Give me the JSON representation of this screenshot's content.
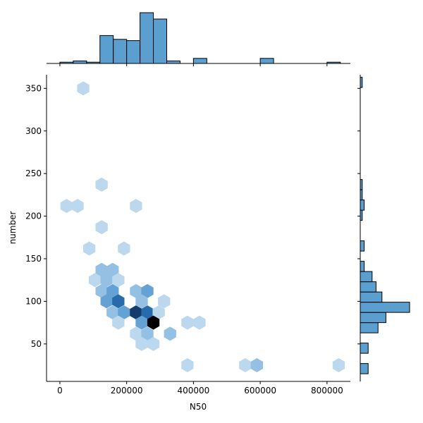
{
  "chart_data": {
    "type": "hexbin-joint",
    "xlabel": "N50",
    "ylabel": "number",
    "xlim": [
      -40000,
      870000
    ],
    "ylim": [
      6,
      366
    ],
    "x_ticks": [
      0,
      200000,
      400000,
      600000,
      800000
    ],
    "x_tick_labels": [
      "0",
      "200000",
      "400000",
      "600000",
      "800000"
    ],
    "y_ticks": [
      50,
      100,
      150,
      200,
      250,
      300,
      350
    ],
    "y_tick_labels": [
      "50",
      "100",
      "150",
      "200",
      "250",
      "300",
      "350"
    ],
    "grid": false,
    "color": "#2f7fc4",
    "bar_color": "#5b9fd1",
    "hexbins": [
      {
        "x": 70000,
        "y": 350,
        "count": 1
      },
      {
        "x": 125000,
        "y": 237,
        "count": 1
      },
      {
        "x": 20000,
        "y": 212,
        "count": 1
      },
      {
        "x": 53000,
        "y": 212,
        "count": 1
      },
      {
        "x": 228000,
        "y": 212,
        "count": 1
      },
      {
        "x": 125000,
        "y": 187,
        "count": 1
      },
      {
        "x": 88000,
        "y": 162,
        "count": 1
      },
      {
        "x": 192000,
        "y": 162,
        "count": 1
      },
      {
        "x": 125000,
        "y": 137,
        "count": 2
      },
      {
        "x": 158000,
        "y": 137,
        "count": 2
      },
      {
        "x": 105000,
        "y": 125,
        "count": 1
      },
      {
        "x": 140000,
        "y": 125,
        "count": 2
      },
      {
        "x": 175000,
        "y": 125,
        "count": 1
      },
      {
        "x": 125000,
        "y": 112,
        "count": 2
      },
      {
        "x": 158000,
        "y": 112,
        "count": 3
      },
      {
        "x": 228000,
        "y": 112,
        "count": 2
      },
      {
        "x": 262000,
        "y": 112,
        "count": 3
      },
      {
        "x": 140000,
        "y": 100,
        "count": 3
      },
      {
        "x": 175000,
        "y": 100,
        "count": 5
      },
      {
        "x": 245000,
        "y": 100,
        "count": 2
      },
      {
        "x": 312000,
        "y": 100,
        "count": 1
      },
      {
        "x": 158000,
        "y": 87,
        "count": 2
      },
      {
        "x": 192000,
        "y": 87,
        "count": 3
      },
      {
        "x": 228000,
        "y": 87,
        "count": 7
      },
      {
        "x": 262000,
        "y": 87,
        "count": 5
      },
      {
        "x": 296000,
        "y": 87,
        "count": 1
      },
      {
        "x": 175000,
        "y": 75,
        "count": 1
      },
      {
        "x": 245000,
        "y": 75,
        "count": 3
      },
      {
        "x": 280000,
        "y": 75,
        "count": 10
      },
      {
        "x": 382000,
        "y": 75,
        "count": 1
      },
      {
        "x": 418000,
        "y": 75,
        "count": 1
      },
      {
        "x": 228000,
        "y": 62,
        "count": 1
      },
      {
        "x": 262000,
        "y": 62,
        "count": 2
      },
      {
        "x": 330000,
        "y": 62,
        "count": 2
      },
      {
        "x": 245000,
        "y": 50,
        "count": 1
      },
      {
        "x": 280000,
        "y": 50,
        "count": 1
      },
      {
        "x": 382000,
        "y": 25,
        "count": 1
      },
      {
        "x": 555000,
        "y": 25,
        "count": 1
      },
      {
        "x": 590000,
        "y": 25,
        "count": 2
      },
      {
        "x": 835000,
        "y": 25,
        "count": 1
      }
    ],
    "x_marginal": {
      "bin_edges": [
        0,
        40000,
        80000,
        120000,
        160000,
        200000,
        240000,
        280000,
        320000,
        360000,
        400000,
        440000,
        480000,
        520000,
        560000,
        600000,
        640000,
        680000,
        720000,
        760000,
        800000,
        840000
      ],
      "counts": [
        1,
        2,
        1,
        22,
        19,
        18,
        40,
        35,
        2,
        0,
        4,
        0,
        0,
        0,
        0,
        4,
        0,
        0,
        0,
        0,
        1
      ]
    },
    "y_marginal": {
      "bin_edges": [
        15,
        27,
        39,
        51,
        63,
        75,
        87,
        99,
        111,
        123,
        135,
        147,
        159,
        171,
        183,
        195,
        207,
        219,
        231,
        243,
        255,
        267,
        279,
        291,
        303,
        315,
        327,
        339,
        351,
        363
      ],
      "counts": [
        4,
        0,
        4,
        0,
        9,
        13,
        25,
        11,
        8,
        6,
        2,
        0,
        2,
        0,
        0,
        1,
        2,
        1,
        1,
        0,
        0,
        0,
        0,
        0,
        0,
        0,
        0,
        0,
        1
      ]
    }
  }
}
